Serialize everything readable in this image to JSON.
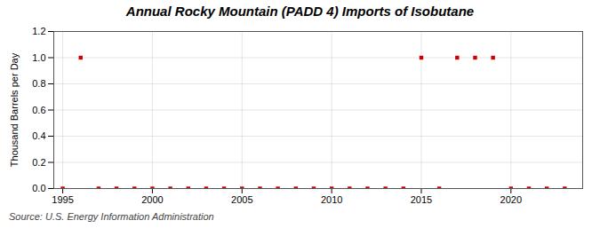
{
  "chart_data": {
    "type": "scatter",
    "title": "Annual Rocky Mountain (PADD 4) Imports of Isobutane",
    "ylabel": "Thousand Barrels per Day",
    "source": "Source: U.S. Energy Information Administration",
    "x": [
      1995,
      1996,
      1997,
      1998,
      1999,
      2000,
      2001,
      2002,
      2003,
      2004,
      2005,
      2006,
      2007,
      2008,
      2009,
      2010,
      2011,
      2012,
      2013,
      2014,
      2015,
      2016,
      2017,
      2018,
      2019,
      2020,
      2021,
      2022,
      2023
    ],
    "values": [
      0,
      1,
      0,
      0,
      0,
      0,
      0,
      0,
      0,
      0,
      0,
      0,
      0,
      0,
      0,
      0,
      0,
      0,
      0,
      0,
      1,
      0,
      1,
      1,
      1,
      0,
      0,
      0,
      0
    ],
    "color": "#cc0000",
    "marker": "square",
    "xlim": [
      1994.5,
      2024.0
    ],
    "ylim": [
      0.0,
      1.2
    ],
    "xticks": [
      1995,
      2000,
      2005,
      2010,
      2015,
      2020
    ],
    "yticks": [
      {
        "value": 0.0,
        "label": "0.0"
      },
      0.2,
      0.4,
      0.6,
      0.8,
      {
        "value": 1.0,
        "label": "1.0"
      },
      1.2
    ],
    "grid": true
  }
}
